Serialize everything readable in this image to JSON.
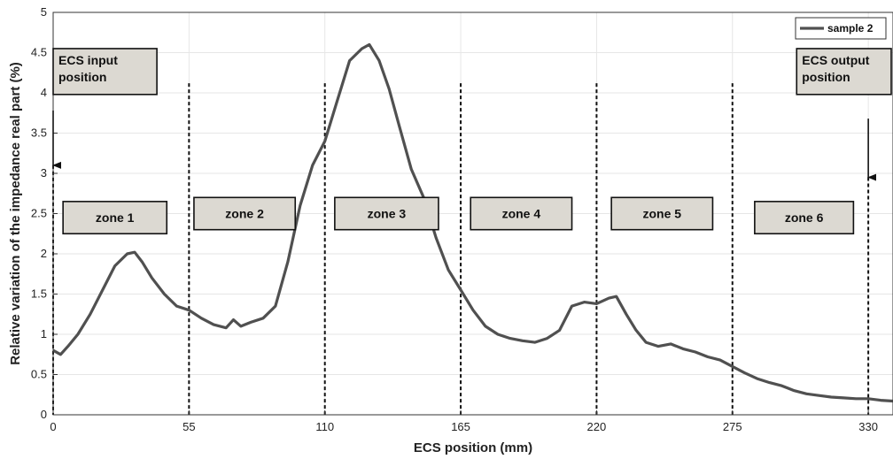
{
  "chart_data": {
    "type": "line",
    "xlabel": "ECS position (mm)",
    "ylabel": "Relative variation of the impedance real part (%)",
    "xlim": [
      0,
      340
    ],
    "ylim": [
      0,
      5
    ],
    "xticks": [
      0,
      55,
      110,
      165,
      220,
      275,
      330
    ],
    "yticks": [
      0,
      0.5,
      1,
      1.5,
      2,
      2.5,
      3,
      3.5,
      4,
      4.5,
      5
    ],
    "grid": true,
    "legend": {
      "position": "top-right"
    },
    "series": [
      {
        "name": "sample 2",
        "color": "#505050",
        "x": [
          0,
          3,
          6,
          10,
          15,
          20,
          25,
          30,
          33,
          36,
          40,
          45,
          50,
          55,
          60,
          65,
          70,
          73,
          76,
          80,
          85,
          90,
          95,
          100,
          105,
          110,
          115,
          120,
          125,
          128,
          132,
          136,
          140,
          145,
          150,
          155,
          160,
          165,
          170,
          175,
          180,
          185,
          190,
          195,
          200,
          205,
          210,
          215,
          220,
          225,
          228,
          232,
          236,
          240,
          245,
          250,
          255,
          260,
          265,
          270,
          275,
          280,
          285,
          290,
          295,
          300,
          305,
          310,
          315,
          320,
          325,
          330,
          335,
          340
        ],
        "y": [
          0.8,
          0.75,
          0.85,
          1.0,
          1.25,
          1.55,
          1.85,
          2.0,
          2.02,
          1.9,
          1.7,
          1.5,
          1.35,
          1.3,
          1.2,
          1.12,
          1.08,
          1.18,
          1.1,
          1.15,
          1.2,
          1.35,
          1.9,
          2.6,
          3.1,
          3.4,
          3.9,
          4.4,
          4.55,
          4.6,
          4.4,
          4.05,
          3.6,
          3.05,
          2.7,
          2.2,
          1.8,
          1.55,
          1.3,
          1.1,
          1.0,
          0.95,
          0.92,
          0.9,
          0.95,
          1.05,
          1.35,
          1.4,
          1.38,
          1.45,
          1.47,
          1.25,
          1.05,
          0.9,
          0.85,
          0.88,
          0.82,
          0.78,
          0.72,
          0.68,
          0.6,
          0.52,
          0.45,
          0.4,
          0.36,
          0.3,
          0.26,
          0.24,
          0.22,
          0.21,
          0.2,
          0.2,
          0.18,
          0.17
        ]
      }
    ],
    "vlines": [
      0,
      55,
      110,
      165,
      220,
      275,
      330
    ],
    "zones": [
      {
        "label": "zone 1",
        "x0": 4,
        "x1": 46,
        "y0": 2.65,
        "y1": 2.25
      },
      {
        "label": "zone 2",
        "x0": 57,
        "x1": 98,
        "y0": 2.7,
        "y1": 2.3
      },
      {
        "label": "zone 3",
        "x0": 114,
        "x1": 156,
        "y0": 2.7,
        "y1": 2.3
      },
      {
        "label": "zone 4",
        "x0": 169,
        "x1": 210,
        "y0": 2.7,
        "y1": 2.3
      },
      {
        "label": "zone 5",
        "x0": 226,
        "x1": 267,
        "y0": 2.7,
        "y1": 2.3
      },
      {
        "label": "zone 6",
        "x0": 284,
        "x1": 324,
        "y0": 2.65,
        "y1": 2.25
      }
    ],
    "annotations": [
      {
        "lines": [
          "ECS input",
          "position"
        ],
        "x0": 0,
        "x1": 42,
        "y0": 4.55,
        "y1": 3.98,
        "arrow_x": 0,
        "arrow_y0": 3.78,
        "arrow_y1": 3.1
      },
      {
        "lines": [
          "ECS output",
          "position"
        ],
        "x0": 301,
        "x1": 344,
        "y0": 4.55,
        "y1": 3.98,
        "arrow_x": 330,
        "arrow_y0": 3.68,
        "arrow_y1": 2.95
      }
    ]
  }
}
